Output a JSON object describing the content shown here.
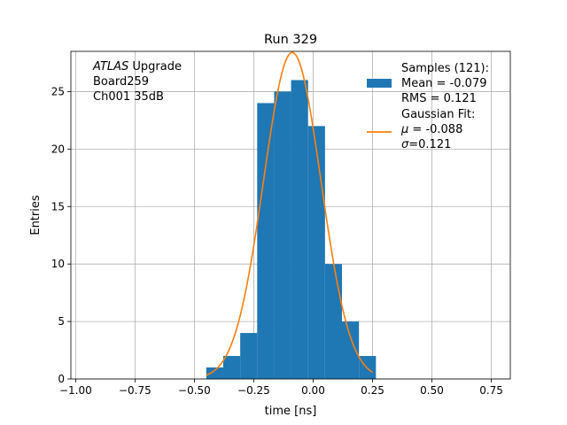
{
  "chart_data": {
    "type": "bar",
    "title": "Run 329",
    "xlabel": "time [ns]",
    "ylabel": "Entries",
    "xlim": [
      -1.02,
      0.83
    ],
    "ylim": [
      0,
      28.5
    ],
    "x_ticks": [
      -1.0,
      -0.75,
      -0.5,
      -0.25,
      0.0,
      0.25,
      0.5,
      0.75
    ],
    "x_tick_labels": [
      "−1.00",
      "−0.75",
      "−0.50",
      "−0.25",
      "0.00",
      "0.25",
      "0.50",
      "0.75"
    ],
    "y_ticks": [
      0,
      5,
      10,
      15,
      20,
      25
    ],
    "y_tick_labels": [
      "0",
      "5",
      "10",
      "15",
      "20",
      "25"
    ],
    "grid": true,
    "legend_position": "top-right",
    "bin_width": 0.0714,
    "bin_edges": [
      -0.45,
      -0.3786,
      -0.3071,
      -0.2357,
      -0.1643,
      -0.0929,
      -0.0214,
      0.05,
      0.1214,
      0.1929,
      0.2643
    ],
    "histogram_counts": [
      1,
      2,
      4,
      24,
      25,
      26,
      22,
      10,
      5,
      2
    ],
    "gaussian_fit": {
      "mu": -0.088,
      "sigma": 0.121,
      "amplitude": 28.4,
      "x_range": [
        -0.45,
        0.25
      ]
    },
    "annotation_lines": [
      {
        "italic": "ATLAS",
        "rest": " Upgrade"
      },
      {
        "italic": "",
        "rest": " Board259"
      },
      {
        "italic": "",
        "rest": " Ch001 35dB"
      }
    ],
    "series": [
      {
        "name": "Samples (121):",
        "kind": "histogram",
        "color": "#1f77b4",
        "legend_lines": [
          {
            "italic": "",
            "rest": "Samples (121):"
          },
          {
            "italic": "",
            "rest": " Mean = -0.079"
          },
          {
            "italic": "",
            "rest": " RMS = 0.121"
          }
        ]
      },
      {
        "name": "Gaussian Fit:",
        "kind": "line",
        "color": "#ff7f0e",
        "legend_lines": [
          {
            "italic": "",
            "rest": "Gaussian Fit:"
          },
          {
            "italic": "μ",
            "rest": " = -0.088",
            "prefix": " "
          },
          {
            "italic": "σ",
            "rest": "=0.121",
            "prefix": " "
          }
        ]
      }
    ]
  }
}
